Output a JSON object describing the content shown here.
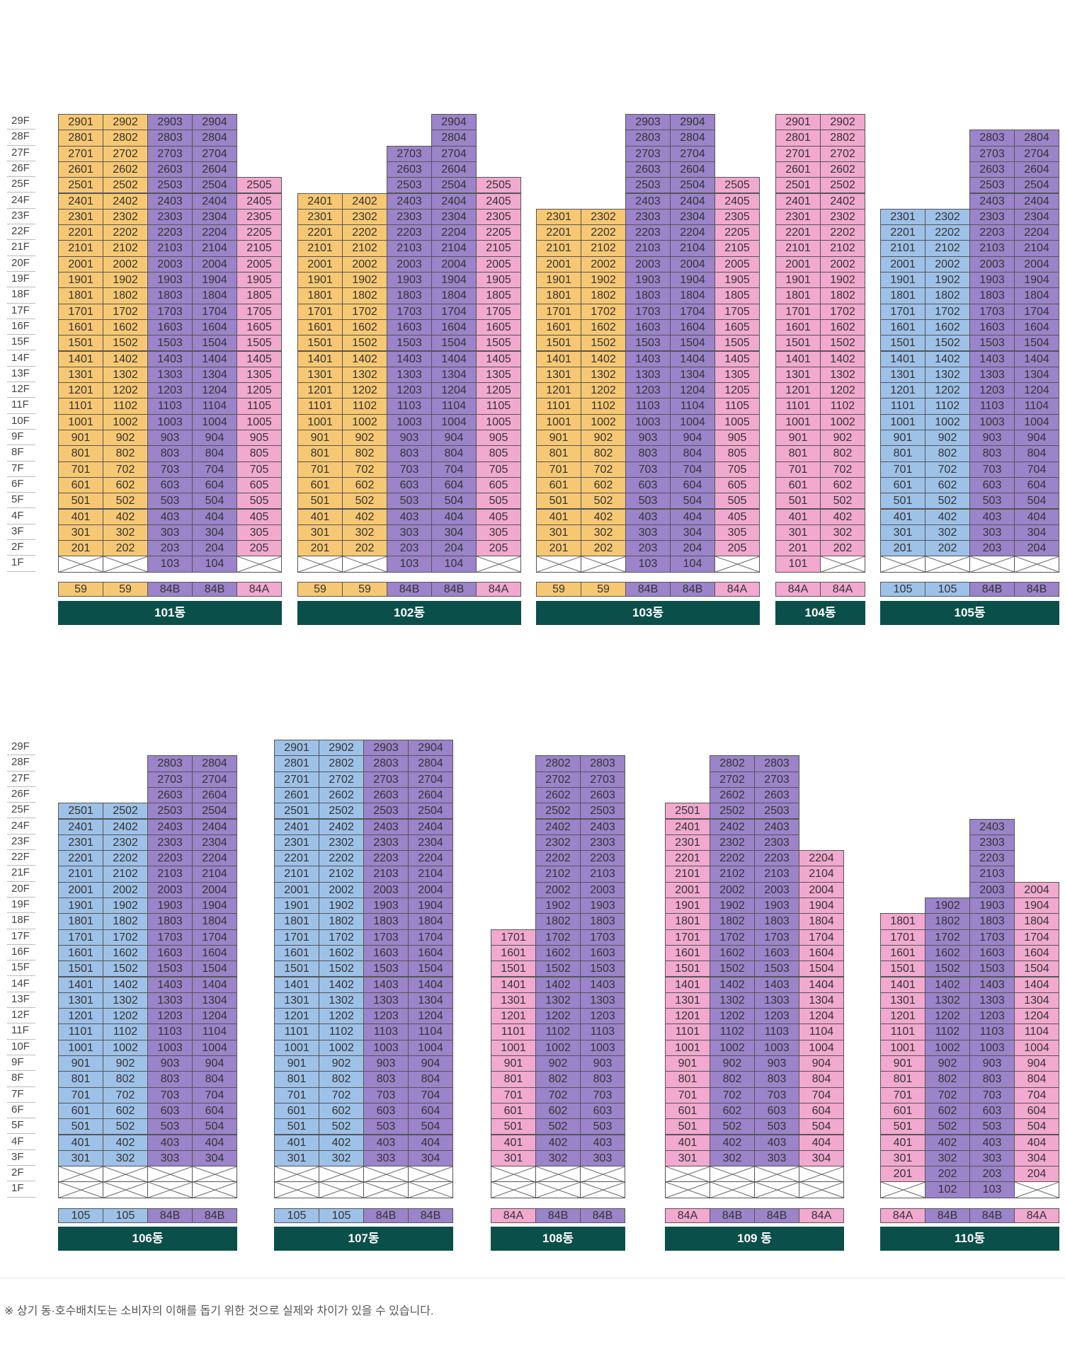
{
  "colors": {
    "yellow": "#f7c873",
    "blue": "#9ec1e8",
    "purple": "#9b84c9",
    "pink": "#f1a9cf",
    "dark": "#0b4f4a"
  },
  "floors_top": [
    "29F",
    "28F",
    "27F",
    "26F",
    "25F",
    "24F",
    "23F",
    "22F",
    "21F",
    "20F",
    "19F",
    "18F",
    "17F",
    "16F",
    "15F",
    "14F",
    "13F",
    "12F",
    "11F",
    "10F",
    "9F",
    "8F",
    "7F",
    "6F",
    "5F",
    "4F",
    "3F",
    "2F",
    "1F"
  ],
  "floors_bottom": [
    "29F",
    "28F",
    "27F",
    "26F",
    "25F",
    "24F",
    "23F",
    "22F",
    "21F",
    "20F",
    "19F",
    "18F",
    "17F",
    "16F",
    "15F",
    "14F",
    "13F",
    "12F",
    "11F",
    "10F",
    "9F",
    "8F",
    "7F",
    "6F",
    "5F",
    "4F",
    "3F",
    "2F",
    "1F"
  ],
  "buildings": [
    {
      "name": "101동",
      "row": 0,
      "cols": [
        {
          "line": 1,
          "top": 29,
          "bottom": 2,
          "pilotis": [
            1
          ],
          "color": "yellow",
          "type": "59"
        },
        {
          "line": 2,
          "top": 29,
          "bottom": 2,
          "pilotis": [
            1
          ],
          "color": "yellow",
          "type": "59"
        },
        {
          "line": 3,
          "top": 29,
          "bottom": 1,
          "pilotis": [],
          "color": "purple",
          "type": "84B"
        },
        {
          "line": 4,
          "top": 29,
          "bottom": 1,
          "pilotis": [],
          "color": "purple",
          "type": "84B"
        },
        {
          "line": 5,
          "top": 25,
          "bottom": 2,
          "pilotis": [
            1
          ],
          "color": "pink",
          "type": "84A"
        }
      ]
    },
    {
      "name": "102동",
      "row": 0,
      "cols": [
        {
          "line": 1,
          "top": 24,
          "bottom": 2,
          "pilotis": [
            1
          ],
          "color": "yellow",
          "type": "59"
        },
        {
          "line": 2,
          "top": 24,
          "bottom": 2,
          "pilotis": [
            1
          ],
          "color": "yellow",
          "type": "59"
        },
        {
          "line": 3,
          "top": 27,
          "bottom": 1,
          "pilotis": [],
          "color": "purple",
          "type": "84B"
        },
        {
          "line": 4,
          "top": 29,
          "bottom": 1,
          "pilotis": [],
          "color": "purple",
          "type": "84B"
        },
        {
          "line": 5,
          "top": 25,
          "bottom": 2,
          "pilotis": [
            1
          ],
          "color": "pink",
          "type": "84A"
        }
      ]
    },
    {
      "name": "103동",
      "row": 0,
      "cols": [
        {
          "line": 1,
          "top": 23,
          "bottom": 2,
          "pilotis": [
            1
          ],
          "color": "yellow",
          "type": "59"
        },
        {
          "line": 2,
          "top": 23,
          "bottom": 2,
          "pilotis": [
            1
          ],
          "color": "yellow",
          "type": "59"
        },
        {
          "line": 3,
          "top": 29,
          "bottom": 1,
          "pilotis": [],
          "color": "purple",
          "type": "84B"
        },
        {
          "line": 4,
          "top": 29,
          "bottom": 1,
          "pilotis": [],
          "color": "purple",
          "type": "84B"
        },
        {
          "line": 5,
          "top": 25,
          "bottom": 2,
          "pilotis": [
            1
          ],
          "color": "pink",
          "type": "84A"
        }
      ]
    },
    {
      "name": "104동",
      "row": 0,
      "cols": [
        {
          "line": 1,
          "top": 29,
          "bottom": 1,
          "pilotis": [],
          "color": "pink",
          "type": "84A"
        },
        {
          "line": 2,
          "top": 29,
          "bottom": 2,
          "pilotis": [
            1
          ],
          "color": "pink",
          "type": "84A"
        }
      ]
    },
    {
      "name": "105동",
      "row": 0,
      "cols": [
        {
          "line": 1,
          "top": 23,
          "bottom": 2,
          "pilotis": [
            1
          ],
          "color": "blue",
          "type": "105"
        },
        {
          "line": 2,
          "top": 23,
          "bottom": 2,
          "pilotis": [
            1
          ],
          "color": "blue",
          "type": "105"
        },
        {
          "line": 3,
          "top": 28,
          "bottom": 2,
          "pilotis": [
            1
          ],
          "color": "purple",
          "type": "84B"
        },
        {
          "line": 4,
          "top": 28,
          "bottom": 2,
          "pilotis": [
            1
          ],
          "color": "purple",
          "type": "84B"
        }
      ]
    },
    {
      "name": "106동",
      "row": 1,
      "cols": [
        {
          "line": 1,
          "top": 25,
          "bottom": 3,
          "pilotis": [
            2,
            1
          ],
          "color": "blue",
          "type": "105"
        },
        {
          "line": 2,
          "top": 25,
          "bottom": 3,
          "pilotis": [
            2,
            1
          ],
          "color": "blue",
          "type": "105"
        },
        {
          "line": 3,
          "top": 28,
          "bottom": 3,
          "pilotis": [
            2,
            1
          ],
          "color": "purple",
          "type": "84B"
        },
        {
          "line": 4,
          "top": 28,
          "bottom": 3,
          "pilotis": [
            2,
            1
          ],
          "color": "purple",
          "type": "84B"
        }
      ]
    },
    {
      "name": "107동",
      "row": 1,
      "cols": [
        {
          "line": 1,
          "top": 29,
          "bottom": 3,
          "pilotis": [
            2,
            1
          ],
          "color": "blue",
          "type": "105"
        },
        {
          "line": 2,
          "top": 29,
          "bottom": 3,
          "pilotis": [
            2,
            1
          ],
          "color": "blue",
          "type": "105"
        },
        {
          "line": 3,
          "top": 29,
          "bottom": 3,
          "pilotis": [
            2,
            1
          ],
          "color": "purple",
          "type": "84B"
        },
        {
          "line": 4,
          "top": 29,
          "bottom": 3,
          "pilotis": [
            2,
            1
          ],
          "color": "purple",
          "type": "84B"
        }
      ]
    },
    {
      "name": "108동",
      "row": 1,
      "cols": [
        {
          "line": 1,
          "top": 17,
          "bottom": 3,
          "pilotis": [
            2,
            1
          ],
          "color": "pink",
          "type": "84A"
        },
        {
          "line": 2,
          "top": 28,
          "bottom": 3,
          "pilotis": [
            2,
            1
          ],
          "color": "purple",
          "type": "84B"
        },
        {
          "line": 3,
          "top": 28,
          "bottom": 3,
          "pilotis": [
            2,
            1
          ],
          "color": "purple",
          "type": "84B"
        }
      ]
    },
    {
      "name": "109 동",
      "row": 1,
      "cols": [
        {
          "line": 1,
          "top": 25,
          "bottom": 3,
          "pilotis": [
            2,
            1
          ],
          "color": "pink",
          "type": "84A"
        },
        {
          "line": 2,
          "top": 28,
          "bottom": 3,
          "pilotis": [
            2,
            1
          ],
          "color": "purple",
          "type": "84B"
        },
        {
          "line": 3,
          "top": 28,
          "bottom": 3,
          "pilotis": [
            2,
            1
          ],
          "color": "purple",
          "type": "84B"
        },
        {
          "line": 4,
          "top": 22,
          "bottom": 3,
          "pilotis": [
            2,
            1
          ],
          "color": "pink",
          "type": "84A"
        }
      ]
    },
    {
      "name": "110동",
      "row": 1,
      "cols": [
        {
          "line": 1,
          "top": 18,
          "bottom": 2,
          "pilotis": [
            1
          ],
          "color": "pink",
          "type": "84A"
        },
        {
          "line": 2,
          "top": 19,
          "bottom": 1,
          "pilotis": [],
          "color": "purple",
          "type": "84B"
        },
        {
          "line": 3,
          "top": 24,
          "bottom": 1,
          "pilotis": [],
          "color": "purple",
          "type": "84B"
        },
        {
          "line": 4,
          "top": 20,
          "bottom": 2,
          "pilotis": [
            1
          ],
          "color": "pink",
          "type": "84A"
        }
      ]
    }
  ],
  "footnote": "※ 상기 동·호수배치도는 소비자의 이해를 돕기 위한 것으로 실제와 차이가 있을 수 있습니다."
}
